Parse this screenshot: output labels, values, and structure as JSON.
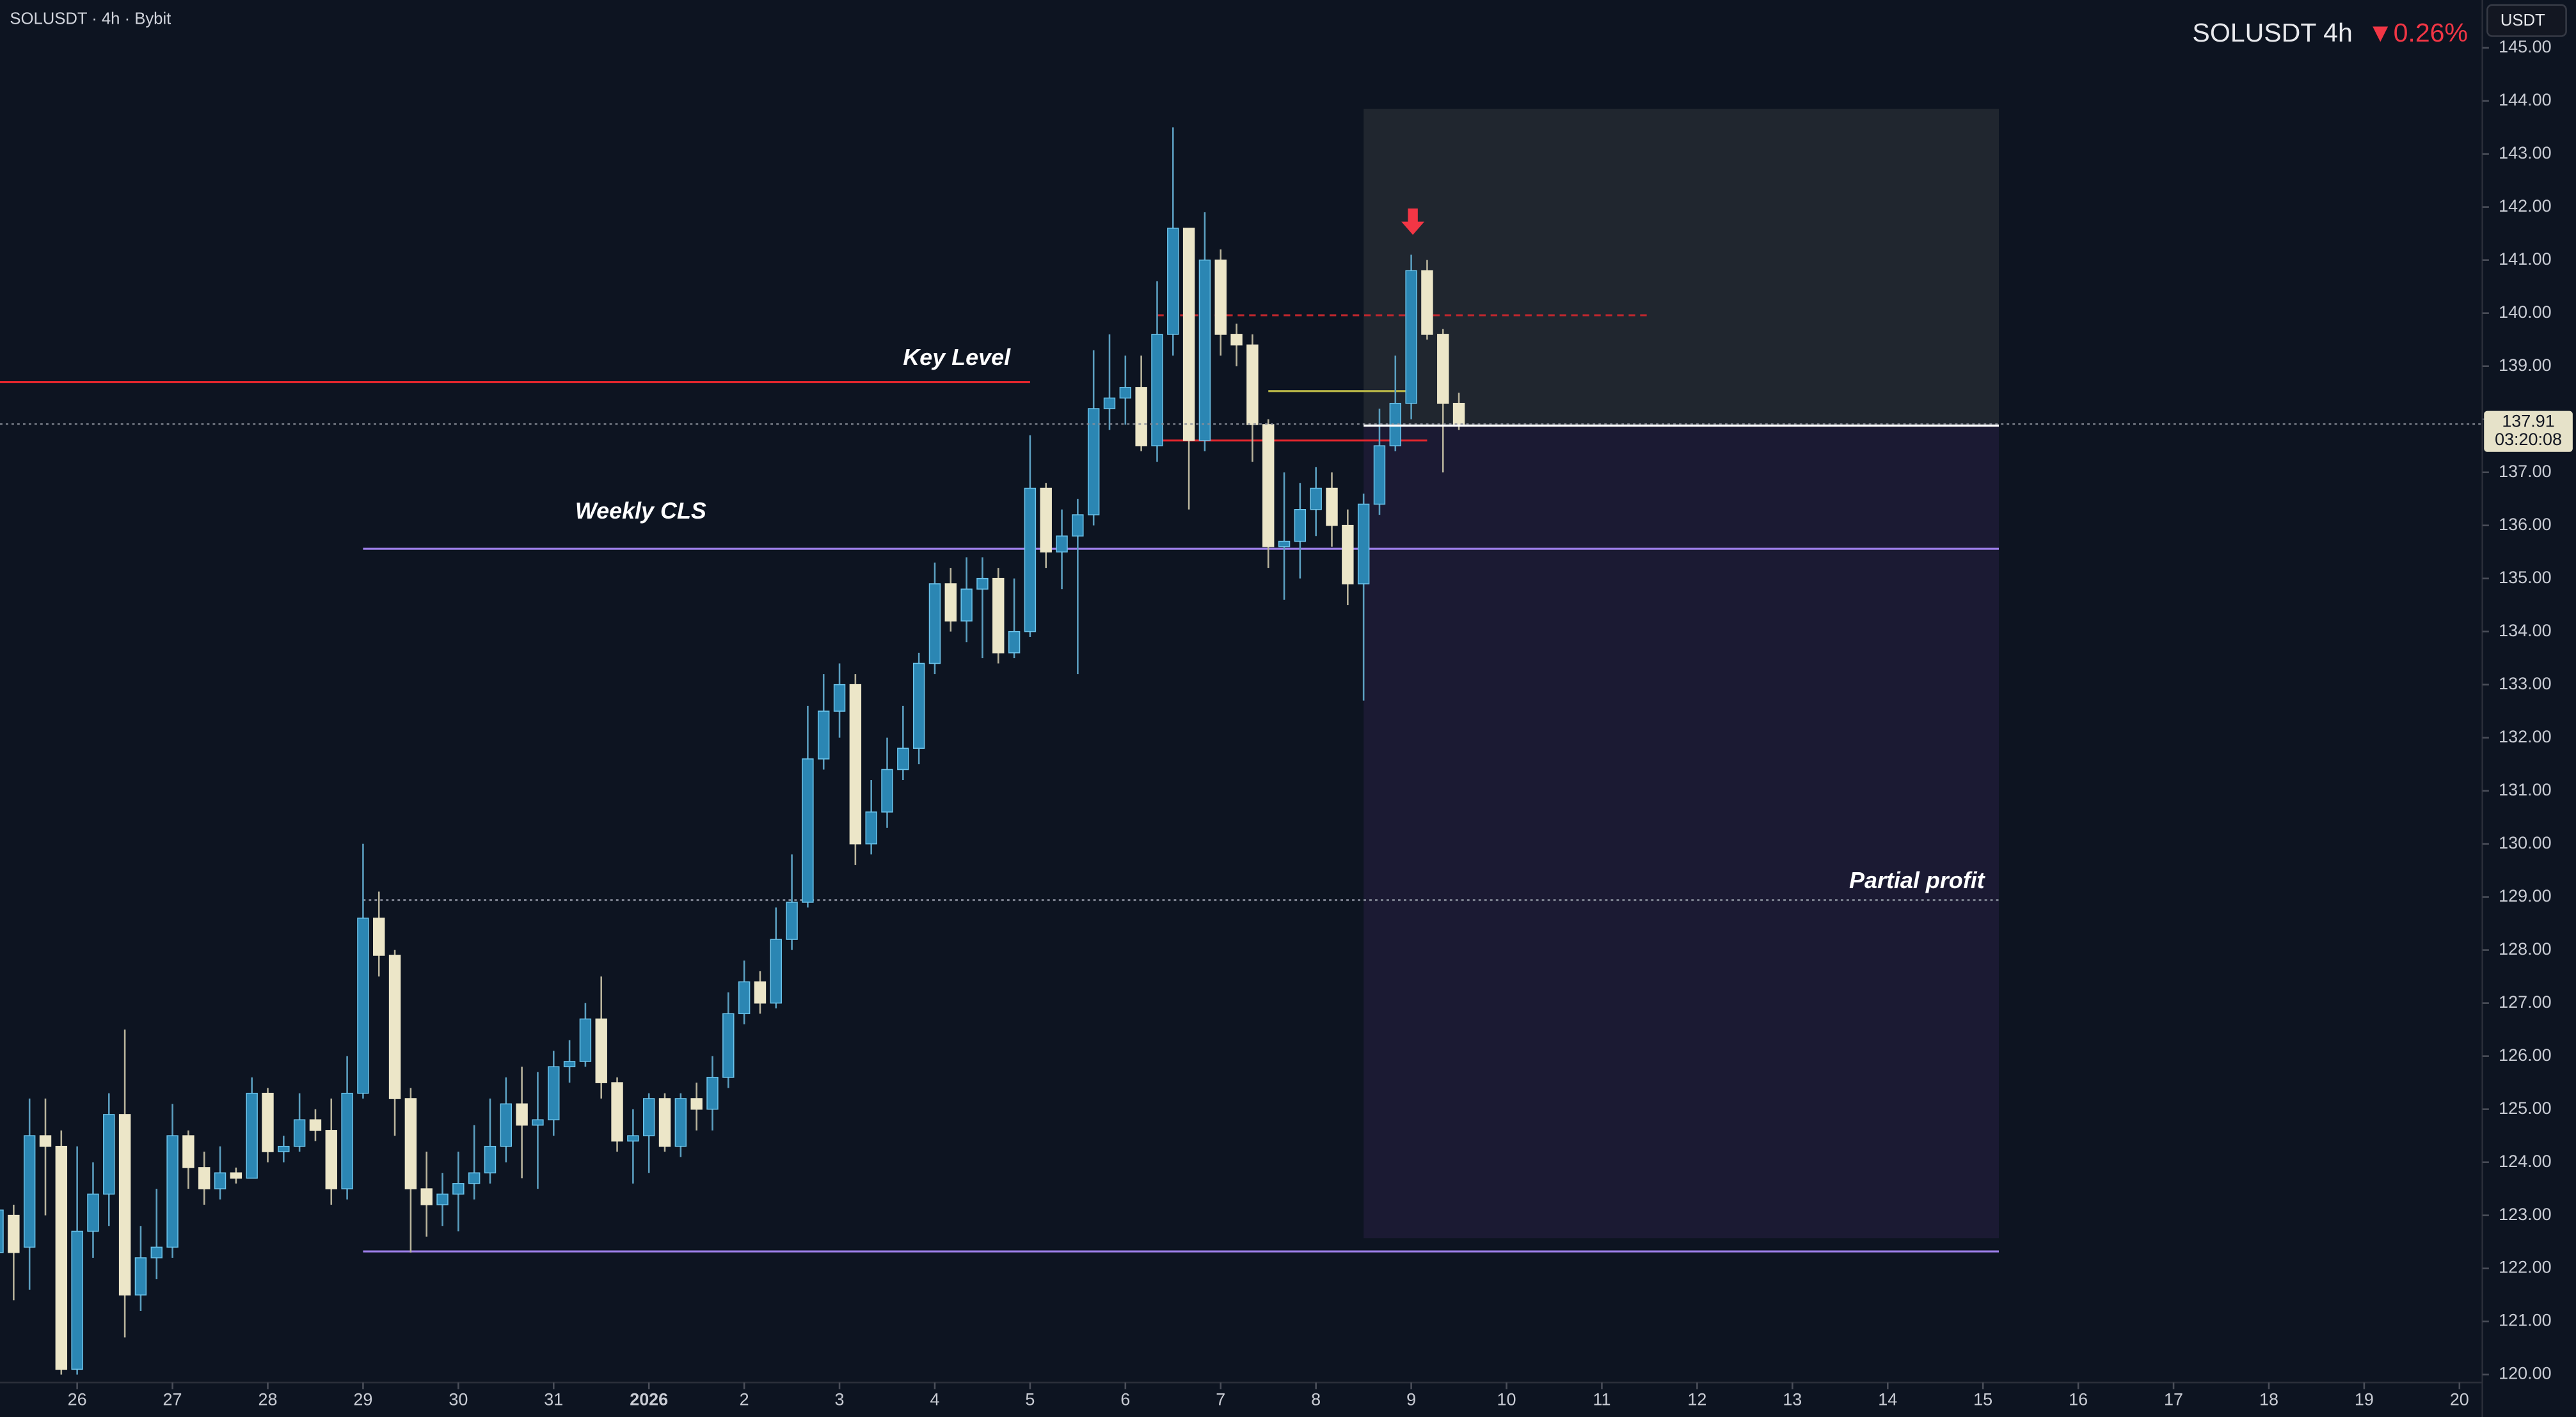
{
  "chart_data": {
    "type": "candlestick",
    "title": "SOLUSDT · 4h · Bybit",
    "symbol": "SOLUSDT 4h",
    "change": "▼0.26%",
    "unit": "USDT",
    "up_color": "#2b86b3",
    "down_color": "#ece6c8",
    "xlim": [
      0.14,
      156.34
    ],
    "xticks": [
      {
        "value": 5,
        "label": "26"
      },
      {
        "value": 11,
        "label": "27"
      },
      {
        "value": 17,
        "label": "28"
      },
      {
        "value": 23,
        "label": "29"
      },
      {
        "value": 29,
        "label": "30"
      },
      {
        "value": 35,
        "label": "31"
      },
      {
        "value": 41,
        "label": "2026"
      },
      {
        "value": 47,
        "label": "2"
      },
      {
        "value": 53,
        "label": "3"
      },
      {
        "value": 59,
        "label": "4"
      },
      {
        "value": 65,
        "label": "5"
      },
      {
        "value": 71,
        "label": "6"
      },
      {
        "value": 77,
        "label": "7"
      },
      {
        "value": 83,
        "label": "8"
      },
      {
        "value": 89,
        "label": "9"
      },
      {
        "value": 95,
        "label": "10"
      },
      {
        "value": 101,
        "label": "11"
      },
      {
        "value": 107,
        "label": "12"
      },
      {
        "value": 113,
        "label": "13"
      },
      {
        "value": 119,
        "label": "14"
      },
      {
        "value": 125,
        "label": "15"
      },
      {
        "value": 131,
        "label": "16"
      },
      {
        "value": 137,
        "label": "17"
      },
      {
        "value": 143,
        "label": "18"
      },
      {
        "value": 149,
        "label": "19"
      },
      {
        "value": 155,
        "label": "20"
      }
    ],
    "ylim": [
      119.85,
      145.9
    ],
    "yticks": [
      {
        "value": 120,
        "label": "120.00"
      },
      {
        "value": 121,
        "label": "121.00"
      },
      {
        "value": 122,
        "label": "122.00"
      },
      {
        "value": 123,
        "label": "123.00"
      },
      {
        "value": 124,
        "label": "124.00"
      },
      {
        "value": 125,
        "label": "125.00"
      },
      {
        "value": 126,
        "label": "126.00"
      },
      {
        "value": 127,
        "label": "127.00"
      },
      {
        "value": 128,
        "label": "128.00"
      },
      {
        "value": 129,
        "label": "129.00"
      },
      {
        "value": 130,
        "label": "130.00"
      },
      {
        "value": 131,
        "label": "131.00"
      },
      {
        "value": 132,
        "label": "132.00"
      },
      {
        "value": 133,
        "label": "133.00"
      },
      {
        "value": 134,
        "label": "134.00"
      },
      {
        "value": 135,
        "label": "135.00"
      },
      {
        "value": 136,
        "label": "136.00"
      },
      {
        "value": 137,
        "label": "137.00"
      },
      {
        "value": 138,
        "label": "138.00"
      },
      {
        "value": 139,
        "label": "139.00"
      },
      {
        "value": 140,
        "label": "140.00"
      },
      {
        "value": 141,
        "label": "141.00"
      },
      {
        "value": 142,
        "label": "142.00"
      },
      {
        "value": 143,
        "label": "143.00"
      },
      {
        "value": 144,
        "label": "144.00"
      },
      {
        "value": 145,
        "label": "145.00"
      }
    ],
    "open": [
      122.3,
      123.0,
      122.4,
      124.5,
      124.3,
      120.1,
      122.7,
      123.4,
      124.9,
      121.5,
      122.2,
      122.4,
      124.5,
      123.9,
      123.5,
      123.8,
      123.7,
      125.3,
      124.2,
      124.3,
      124.8,
      124.6,
      123.5,
      125.3,
      128.6,
      127.9,
      125.2,
      123.5,
      123.2,
      123.4,
      123.6,
      123.8,
      124.3,
      125.1,
      124.7,
      124.8,
      125.8,
      125.9,
      126.7,
      125.5,
      124.4,
      124.5,
      125.2,
      124.3,
      125.2,
      125.0,
      125.6,
      126.8,
      127.4,
      127.0,
      128.2,
      128.9,
      131.6,
      132.5,
      133.0,
      130.0,
      130.6,
      131.4,
      131.8,
      133.4,
      134.9,
      134.2,
      134.8,
      135.0,
      133.6,
      134.0,
      136.7,
      135.5,
      135.8,
      136.2,
      138.2,
      138.4,
      138.6,
      137.5,
      139.6,
      141.6,
      137.6,
      141.0,
      139.6,
      139.4,
      137.9,
      135.6,
      135.7,
      136.3,
      136.7,
      136.0,
      134.9,
      136.4,
      137.5,
      138.3,
      140.8,
      139.6,
      138.3
    ],
    "high": [
      123.5,
      123.2,
      125.2,
      125.2,
      124.6,
      124.3,
      124.0,
      125.3,
      126.5,
      122.8,
      123.5,
      125.1,
      124.6,
      124.2,
      124.3,
      123.9,
      125.6,
      125.4,
      124.5,
      125.3,
      125.0,
      125.2,
      126.0,
      130.0,
      129.1,
      128.0,
      125.4,
      124.2,
      123.8,
      124.2,
      124.7,
      125.2,
      125.6,
      125.8,
      125.7,
      126.1,
      126.3,
      127.0,
      127.5,
      125.6,
      125.0,
      125.3,
      125.3,
      125.3,
      125.5,
      126.0,
      127.2,
      127.8,
      127.6,
      128.8,
      129.8,
      132.6,
      133.2,
      133.4,
      133.2,
      131.2,
      132.0,
      132.6,
      133.6,
      135.3,
      135.2,
      135.4,
      135.4,
      135.2,
      135.0,
      137.7,
      136.8,
      136.3,
      136.5,
      139.3,
      139.6,
      139.2,
      139.2,
      140.6,
      143.5,
      141.6,
      141.9,
      141.2,
      139.8,
      139.6,
      138.0,
      137.0,
      136.8,
      137.1,
      137.0,
      136.3,
      136.6,
      138.2,
      139.2,
      141.1,
      141.0,
      139.7,
      138.5
    ],
    "low": [
      122.0,
      121.4,
      121.6,
      123.0,
      120.0,
      120.0,
      122.2,
      122.8,
      120.7,
      121.2,
      121.8,
      122.2,
      123.5,
      123.2,
      123.3,
      123.6,
      123.7,
      124.0,
      124.0,
      124.2,
      124.4,
      123.2,
      123.3,
      125.2,
      127.5,
      124.5,
      122.3,
      122.6,
      122.8,
      122.7,
      123.3,
      123.6,
      124.0,
      123.7,
      123.5,
      124.5,
      125.5,
      125.8,
      125.2,
      124.2,
      123.6,
      123.8,
      124.2,
      124.1,
      124.6,
      124.6,
      125.4,
      126.6,
      126.8,
      126.9,
      128.0,
      128.8,
      131.4,
      132.0,
      129.6,
      129.8,
      130.3,
      131.2,
      131.5,
      133.2,
      134.0,
      133.8,
      133.5,
      133.4,
      133.5,
      133.9,
      135.2,
      134.8,
      133.2,
      136.0,
      137.8,
      137.9,
      137.4,
      137.2,
      139.2,
      136.3,
      137.4,
      139.2,
      139.0,
      137.2,
      135.2,
      134.6,
      135.0,
      135.8,
      135.6,
      134.5,
      132.7,
      136.2,
      137.4,
      138.0,
      139.5,
      137.0,
      137.8
    ],
    "close": [
      123.1,
      122.3,
      124.5,
      124.3,
      120.1,
      122.7,
      123.4,
      124.9,
      121.5,
      122.2,
      122.4,
      124.5,
      123.9,
      123.5,
      123.8,
      123.7,
      125.3,
      124.2,
      124.3,
      124.8,
      124.6,
      123.5,
      125.3,
      128.6,
      127.9,
      125.2,
      123.5,
      123.2,
      123.4,
      123.6,
      123.8,
      124.3,
      125.1,
      124.7,
      124.8,
      125.8,
      125.9,
      126.7,
      125.5,
      124.4,
      124.5,
      125.2,
      124.3,
      125.2,
      125.0,
      125.6,
      126.8,
      127.4,
      127.0,
      128.2,
      128.9,
      131.6,
      132.5,
      133.0,
      130.0,
      130.6,
      131.4,
      131.8,
      133.4,
      134.9,
      134.2,
      134.8,
      135.0,
      133.6,
      134.0,
      136.7,
      135.5,
      135.8,
      136.2,
      138.2,
      138.4,
      138.6,
      137.5,
      139.6,
      141.6,
      137.6,
      141.0,
      139.6,
      139.4,
      137.9,
      135.6,
      135.7,
      136.3,
      136.7,
      136.0,
      134.9,
      136.4,
      137.5,
      138.3,
      140.8,
      139.6,
      138.3,
      137.91
    ],
    "last_price": 137.91,
    "countdown": "03:20:08",
    "levels": [
      {
        "label": "Key Level",
        "value": 138.7,
        "x": [
          0.14,
          65
        ],
        "color": "#e0262d",
        "style": "solid"
      },
      {
        "label": "Weekly CLS",
        "value": 135.56,
        "x": [
          23,
          126
        ],
        "color": "#9c7ee8",
        "style": "solid"
      },
      {
        "label": "Partial profit",
        "value": 128.94,
        "x": [
          23,
          126
        ],
        "color": "#7d8290",
        "style": "dotted"
      },
      {
        "value": 122.32,
        "x": [
          23,
          126
        ],
        "color": "#9c7ee8",
        "style": "solid"
      },
      {
        "value": 139.96,
        "x": [
          73,
          104
        ],
        "color": "#c2272d",
        "style": "dashed"
      },
      {
        "value": 137.6,
        "x": [
          73,
          90
        ],
        "color": "#e0262d",
        "style": "solid"
      },
      {
        "value": 138.53,
        "x": [
          80,
          89
        ],
        "color": "#b5b347",
        "style": "solid"
      }
    ],
    "position": {
      "x": [
        86,
        126
      ],
      "stop": 143.85,
      "entry": 137.88,
      "target": 122.57
    }
  }
}
